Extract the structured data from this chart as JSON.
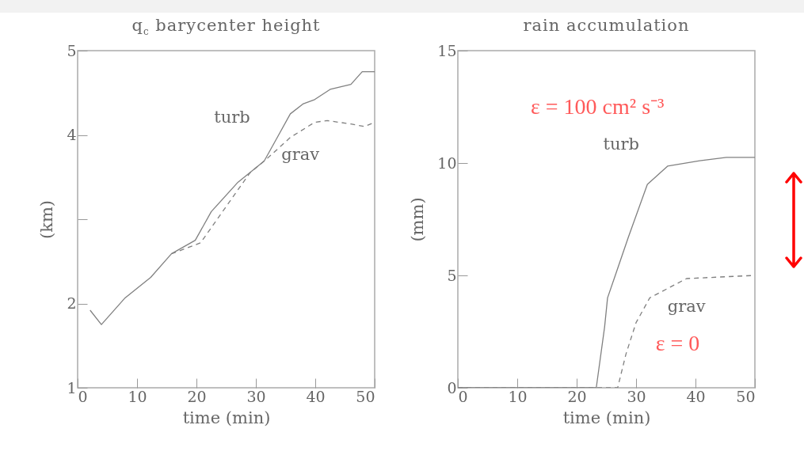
{
  "chart_data": [
    {
      "type": "line",
      "title": "q$_{c}$ barycenter height",
      "xlabel": "time (min)",
      "ylabel": "(km)",
      "xlim": [
        0,
        50
      ],
      "xticks": [
        0,
        10,
        20,
        30,
        40,
        50
      ],
      "ylim": [
        1,
        5
      ],
      "yticks": [
        1,
        2,
        {
          "value": 3,
          "label": null
        },
        4,
        5
      ],
      "series": [
        {
          "name": "turb",
          "color": "#808080",
          "line_style": "solid",
          "x": [
            2.1,
            4,
            7.9,
            12.3,
            15.8,
            19.8,
            22.5,
            27,
            31.4,
            33.6,
            35.8,
            38,
            39.9,
            42.5,
            46,
            47.9,
            50
          ],
          "values": [
            1.92,
            1.75,
            2.06,
            2.31,
            2.59,
            2.75,
            3.09,
            3.44,
            3.69,
            3.97,
            4.25,
            4.37,
            4.42,
            4.54,
            4.6,
            4.75,
            4.75
          ]
        },
        {
          "name": "grav",
          "color": "#808080",
          "line_style": "dashed",
          "x": [
            15.8,
            20.7,
            25,
            29,
            31.9,
            35.8,
            39.9,
            42,
            46,
            48.3,
            50
          ],
          "values": [
            2.59,
            2.72,
            3.15,
            3.55,
            3.72,
            3.97,
            4.15,
            4.17,
            4.13,
            4.1,
            4.15
          ]
        }
      ]
    },
    {
      "type": "line",
      "title": "rain accumulation",
      "xlabel": "time (min)",
      "ylabel": "(mm)",
      "xlim": [
        0,
        50
      ],
      "xticks": [
        0,
        10,
        20,
        30,
        40,
        50
      ],
      "ylim": [
        0,
        15
      ],
      "yticks": [
        0,
        5,
        10,
        15
      ],
      "annotations": [
        "ε = 100 cm² s⁻³",
        "ε = 0"
      ],
      "series": [
        {
          "name": "turb",
          "color": "#808080",
          "line_style": "solid",
          "x": [
            0,
            23.3,
            24.7,
            25.2,
            26.5,
            28.7,
            31.9,
            35.3,
            40.7,
            45.2,
            50
          ],
          "values": [
            0,
            0,
            2.7,
            4,
            5,
            6.7,
            9.05,
            9.86,
            10.1,
            10.25,
            10.25
          ]
        },
        {
          "name": "grav",
          "color": "#808080",
          "line_style": "dashed",
          "x": [
            0,
            26.9,
            28.3,
            30,
            32.3,
            38.5,
            50
          ],
          "values": [
            0,
            0,
            1.5,
            2.9,
            4,
            4.86,
            5
          ]
        }
      ]
    }
  ]
}
